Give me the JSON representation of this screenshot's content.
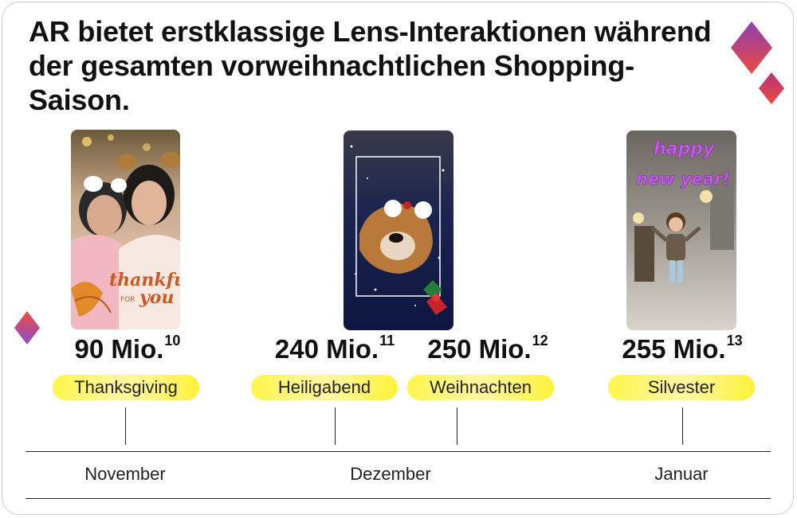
{
  "title": "AR bietet erstklassige Lens-Interaktionen während der gesamten vorweihnachtlichen Shopping-Saison.",
  "photos": [
    {
      "name": "thanksgiving-photo",
      "overlay_text": [
        "thankful",
        "FOR",
        "you"
      ]
    },
    {
      "name": "christmas-eve-photo"
    },
    {
      "name": "new-years-eve-photo",
      "overlay_text": [
        "happy",
        "new year!"
      ]
    }
  ],
  "events": [
    {
      "value": "90 Mio.",
      "footnote": "10",
      "label": "Thanksgiving"
    },
    {
      "value": "240 Mio.",
      "footnote": "11",
      "label": "Heiligabend"
    },
    {
      "value": "250 Mio.",
      "footnote": "12",
      "label": "Weihnachten"
    },
    {
      "value": "255 Mio.",
      "footnote": "13",
      "label": "Silvester"
    }
  ],
  "months": [
    "November",
    "Dezember",
    "Januar"
  ],
  "colors": {
    "highlight": "#fff64d",
    "diamond_top": "#b0307a",
    "diamond_bottom": "#e8503a"
  }
}
